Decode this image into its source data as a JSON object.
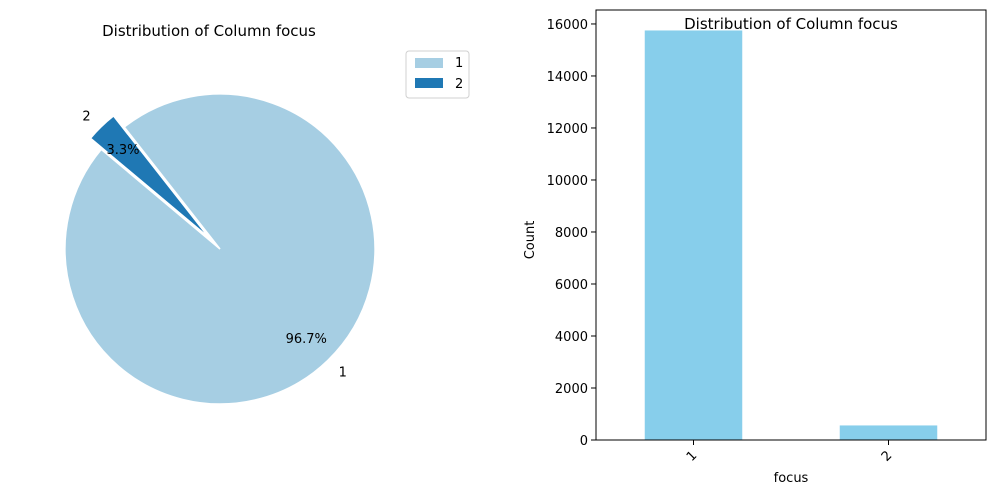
{
  "chart_data": [
    {
      "type": "pie",
      "title": "Distribution of Column focus",
      "labels": [
        "1",
        "2"
      ],
      "values": [
        96.7,
        3.3
      ],
      "autopct_labels": [
        "96.7%",
        "3.3%"
      ],
      "colors": [
        "#a6cee3",
        "#1f78b4"
      ],
      "explode": [
        0,
        0.1
      ],
      "legend": {
        "entries": [
          "1",
          "2"
        ],
        "placement": "upper-right-outside"
      }
    },
    {
      "type": "bar",
      "title": "Distribution of Column focus",
      "categories": [
        "1",
        "2"
      ],
      "values": [
        15750,
        560
      ],
      "xlabel": "focus",
      "ylabel": "Count",
      "ylim": [
        0,
        16537
      ],
      "yticks": [
        "0",
        "2000",
        "4000",
        "6000",
        "8000",
        "10000",
        "12000",
        "14000",
        "16000"
      ],
      "bar_color": "#87ceeb",
      "grid": false
    }
  ]
}
